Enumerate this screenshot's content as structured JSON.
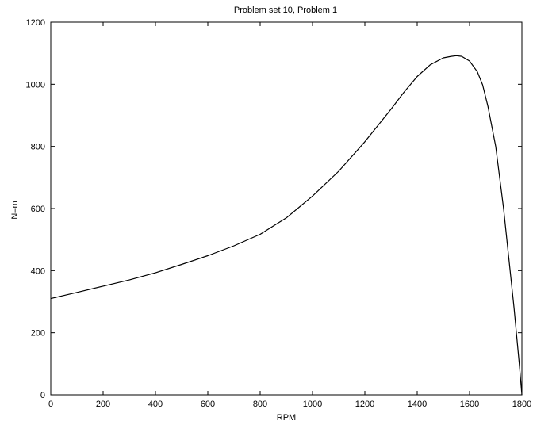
{
  "chart_data": {
    "type": "line",
    "title": "Problem set 10, Problem 1",
    "xlabel": "RPM",
    "ylabel": "N–m",
    "xlim": [
      0,
      1800
    ],
    "ylim": [
      0,
      1200
    ],
    "xticks": [
      0,
      200,
      400,
      600,
      800,
      1000,
      1200,
      1400,
      1600,
      1800
    ],
    "yticks": [
      0,
      200,
      400,
      600,
      800,
      1000,
      1200
    ],
    "xtick_labels": [
      "0",
      "200",
      "400",
      "600",
      "800",
      "1000",
      "1200",
      "1400",
      "1600",
      "1800"
    ],
    "ytick_labels": [
      "0",
      "200",
      "400",
      "600",
      "800",
      "1000",
      "1200"
    ],
    "grid": false,
    "line_color": "#000000",
    "series": [
      {
        "x": [
          0,
          100,
          200,
          300,
          400,
          500,
          600,
          700,
          800,
          900,
          1000,
          1100,
          1200,
          1300,
          1350,
          1400,
          1450,
          1500,
          1530,
          1550,
          1570,
          1600,
          1630,
          1650,
          1670,
          1700,
          1730,
          1750,
          1770,
          1790,
          1800
        ],
        "y": [
          310,
          330,
          350,
          370,
          393,
          420,
          448,
          480,
          517,
          570,
          640,
          720,
          815,
          920,
          975,
          1025,
          1063,
          1085,
          1090,
          1092,
          1090,
          1075,
          1040,
          998,
          930,
          800,
          600,
          440,
          280,
          100,
          0
        ]
      }
    ]
  }
}
